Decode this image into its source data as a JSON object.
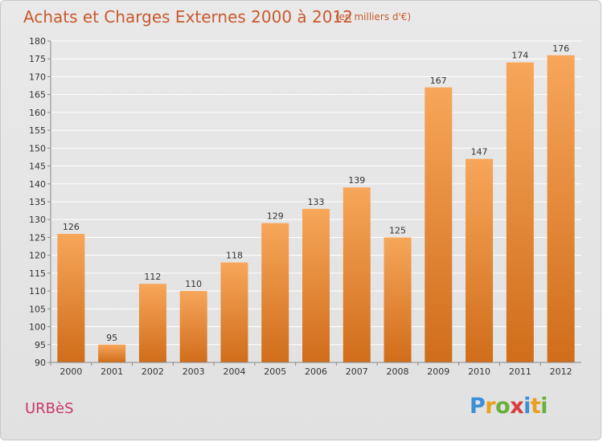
{
  "header": {
    "title": "Achats et Charges Externes 2000 à 2012",
    "unit_note": "(en milliers d'€)"
  },
  "footer": {
    "commune": "URBèS",
    "logo": {
      "letters": [
        "P",
        "r",
        "o",
        "x",
        "i",
        "t",
        "i"
      ],
      "colors": [
        "#3a8fd6",
        "#e8a020",
        "#6ab03c",
        "#d83c3c",
        "#3a8fd6",
        "#e8a020",
        "#6ab03c"
      ]
    }
  },
  "colors": {
    "bar_light": "#f7a65a",
    "bar_dark": "#d06d1a",
    "title": "#c85a2e",
    "axis_text": "#333333"
  },
  "chart_data": {
    "type": "bar",
    "title": "Achats et Charges Externes 2000 à 2012",
    "subtitle": "(en milliers d'€)",
    "categories": [
      "2000",
      "2001",
      "2002",
      "2003",
      "2004",
      "2005",
      "2006",
      "2007",
      "2008",
      "2009",
      "2010",
      "2011",
      "2012"
    ],
    "values": [
      126,
      95,
      112,
      110,
      118,
      129,
      133,
      139,
      125,
      167,
      147,
      174,
      176
    ],
    "ylim": [
      90,
      180
    ],
    "yticks": [
      90,
      95,
      100,
      105,
      110,
      115,
      120,
      125,
      130,
      135,
      140,
      145,
      150,
      155,
      160,
      165,
      170,
      175,
      180
    ],
    "grid": true,
    "legend": "none"
  }
}
